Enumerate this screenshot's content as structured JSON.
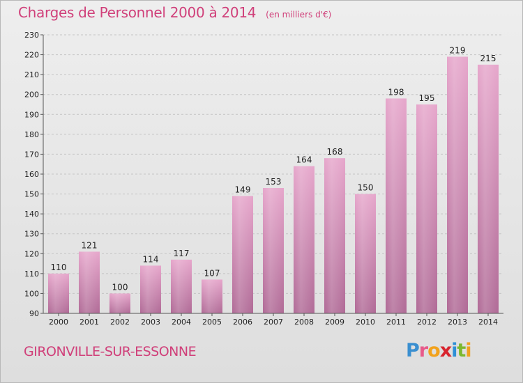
{
  "header": {
    "title": "Charges de Personnel 2000 à 2014",
    "subtitle": "(en milliers d'€)"
  },
  "footer": {
    "city": "GIRONVILLE-SUR-ESSONNE",
    "logo": "Proxiti",
    "logo_letters": [
      {
        "ch": "P",
        "color": "#3a8fd0"
      },
      {
        "ch": "r",
        "color": "#e85a8a"
      },
      {
        "ch": "o",
        "color": "#f2a21c"
      },
      {
        "ch": "x",
        "color": "#d8242e"
      },
      {
        "ch": "i",
        "color": "#2e8fd6"
      },
      {
        "ch": "t",
        "color": "#7cb82f"
      },
      {
        "ch": "i",
        "color": "#f0a020"
      }
    ]
  },
  "chart_data": {
    "type": "bar",
    "title": "Charges de Personnel 2000 à 2014",
    "subtitle": "(en milliers d'€)",
    "categories": [
      "2000",
      "2001",
      "2002",
      "2003",
      "2004",
      "2005",
      "2006",
      "2007",
      "2008",
      "2009",
      "2010",
      "2011",
      "2012",
      "2013",
      "2014"
    ],
    "values": [
      110,
      121,
      100,
      114,
      117,
      107,
      149,
      153,
      164,
      168,
      150,
      198,
      195,
      219,
      215
    ],
    "ylim": [
      90,
      230
    ],
    "yticks": [
      90,
      100,
      110,
      120,
      130,
      140,
      150,
      160,
      170,
      180,
      190,
      200,
      210,
      220,
      230
    ],
    "grid": true,
    "bar_color": "#d87aaa",
    "legend": "none"
  }
}
